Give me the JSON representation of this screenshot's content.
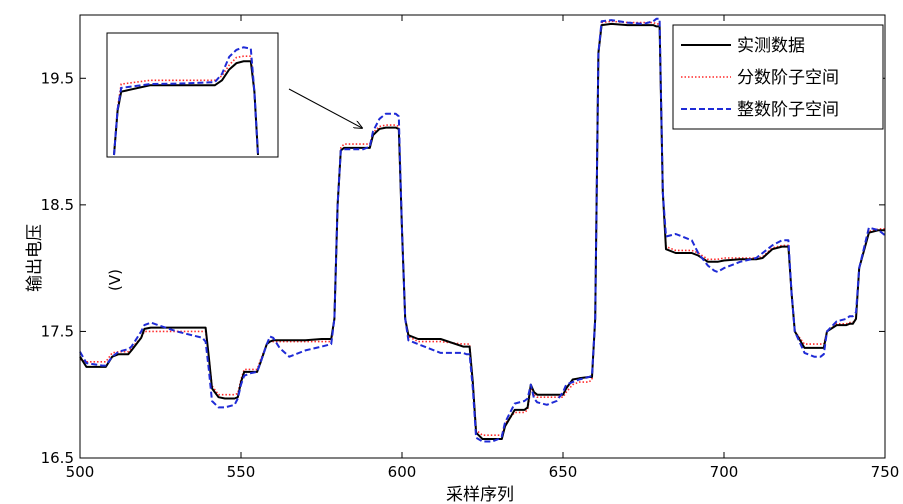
{
  "chart_data": {
    "type": "line",
    "title": "",
    "xlabel": "采样序列",
    "ylabel": "输出电压",
    "ylabel_unit": "(V)",
    "xlim": [
      500,
      750
    ],
    "ylim": [
      16.5,
      20.0
    ],
    "xticks": [
      500,
      550,
      600,
      650,
      700,
      750
    ],
    "yticks": [
      16.5,
      17.5,
      18.5,
      19.5
    ],
    "grid": false,
    "legend_position": "top-right",
    "series": [
      {
        "name": "实测数据",
        "color": "#000000",
        "dash": "solid",
        "x": [
          500,
          502,
          507,
          508,
          510,
          512,
          515,
          516,
          519,
          520,
          522,
          530,
          538,
          539,
          540,
          541,
          543,
          545,
          548,
          549,
          550,
          551,
          553,
          555,
          556,
          558,
          559,
          560,
          562,
          565,
          570,
          575,
          578,
          579,
          580,
          581,
          582,
          585,
          588,
          590,
          591,
          593,
          595,
          598,
          599,
          600,
          601,
          602,
          605,
          610,
          612,
          619,
          620,
          621,
          622,
          623,
          625,
          628,
          630,
          631,
          632,
          635,
          638,
          639,
          640,
          641,
          642,
          645,
          648,
          650,
          651,
          653,
          655,
          658,
          659,
          660,
          661,
          662,
          665,
          670,
          675,
          678,
          679,
          680,
          681,
          682,
          685,
          690,
          692,
          695,
          697,
          698,
          700,
          705,
          710,
          712,
          715,
          718,
          719,
          720,
          721,
          722,
          725,
          728,
          730,
          731,
          732,
          735,
          738,
          739,
          740,
          741,
          742,
          745,
          748,
          750
        ],
        "y": [
          17.3,
          17.22,
          17.22,
          17.22,
          17.3,
          17.32,
          17.32,
          17.35,
          17.45,
          17.52,
          17.53,
          17.53,
          17.53,
          17.53,
          17.3,
          17.05,
          16.98,
          16.97,
          16.97,
          16.98,
          17.1,
          17.18,
          17.18,
          17.18,
          17.25,
          17.4,
          17.42,
          17.43,
          17.43,
          17.43,
          17.43,
          17.44,
          17.44,
          17.6,
          18.5,
          18.93,
          18.95,
          18.95,
          18.95,
          18.95,
          19.05,
          19.1,
          19.11,
          19.11,
          19.1,
          18.3,
          17.6,
          17.47,
          17.44,
          17.44,
          17.44,
          17.38,
          17.38,
          17.38,
          17.1,
          16.7,
          16.65,
          16.65,
          16.65,
          16.65,
          16.75,
          16.88,
          16.88,
          16.9,
          17.08,
          17.02,
          17.0,
          17.0,
          17.0,
          17.0,
          17.05,
          17.12,
          17.13,
          17.14,
          17.14,
          17.6,
          19.7,
          19.92,
          19.93,
          19.92,
          19.92,
          19.92,
          19.91,
          19.91,
          18.6,
          18.15,
          18.12,
          18.12,
          18.1,
          18.05,
          18.05,
          18.05,
          18.06,
          18.07,
          18.07,
          18.08,
          18.15,
          18.17,
          18.17,
          18.17,
          17.8,
          17.5,
          17.37,
          17.37,
          17.37,
          17.37,
          17.5,
          17.55,
          17.55,
          17.56,
          17.56,
          17.6,
          18.0,
          18.28,
          18.3,
          18.3
        ]
      },
      {
        "name": "分数阶子空间",
        "color": "#ff2a2a",
        "dash": "dotted",
        "x": [
          500,
          502,
          507,
          508,
          510,
          512,
          515,
          516,
          519,
          520,
          522,
          530,
          538,
          539,
          540,
          541,
          543,
          545,
          548,
          549,
          550,
          551,
          553,
          555,
          556,
          558,
          559,
          560,
          562,
          565,
          570,
          575,
          578,
          579,
          580,
          581,
          582,
          585,
          588,
          590,
          591,
          593,
          595,
          598,
          599,
          600,
          601,
          602,
          605,
          610,
          612,
          619,
          620,
          621,
          622,
          623,
          625,
          628,
          630,
          631,
          632,
          635,
          638,
          639,
          640,
          641,
          642,
          645,
          648,
          650,
          651,
          653,
          655,
          658,
          659,
          660,
          661,
          662,
          665,
          670,
          675,
          678,
          679,
          680,
          681,
          682,
          685,
          690,
          692,
          695,
          697,
          698,
          700,
          705,
          710,
          712,
          715,
          718,
          719,
          720,
          721,
          722,
          725,
          728,
          730,
          731,
          732,
          735,
          738,
          739,
          740,
          741,
          742,
          745,
          748,
          750
        ],
        "y": [
          17.28,
          17.26,
          17.26,
          17.26,
          17.33,
          17.34,
          17.34,
          17.37,
          17.45,
          17.5,
          17.5,
          17.5,
          17.5,
          17.5,
          17.3,
          17.07,
          17.0,
          17.0,
          17.0,
          17.01,
          17.12,
          17.2,
          17.2,
          17.2,
          17.27,
          17.4,
          17.42,
          17.42,
          17.42,
          17.42,
          17.42,
          17.42,
          17.42,
          17.6,
          18.5,
          18.95,
          18.98,
          18.98,
          18.98,
          18.98,
          19.07,
          19.12,
          19.13,
          19.13,
          19.12,
          18.3,
          17.6,
          17.46,
          17.42,
          17.42,
          17.42,
          17.4,
          17.4,
          17.4,
          17.1,
          16.72,
          16.68,
          16.68,
          16.68,
          16.68,
          16.77,
          16.86,
          16.86,
          16.88,
          17.05,
          17.0,
          16.98,
          16.98,
          16.98,
          16.98,
          17.02,
          17.08,
          17.1,
          17.1,
          17.12,
          17.6,
          19.7,
          19.94,
          19.95,
          19.94,
          19.94,
          19.94,
          19.93,
          19.93,
          18.6,
          18.17,
          18.14,
          18.14,
          18.12,
          18.07,
          18.07,
          18.07,
          18.08,
          18.08,
          18.08,
          18.09,
          18.16,
          18.18,
          18.18,
          18.18,
          17.8,
          17.5,
          17.4,
          17.4,
          17.4,
          17.4,
          17.5,
          17.56,
          17.56,
          17.57,
          17.57,
          17.6,
          18.0,
          18.29,
          18.31,
          18.31
        ]
      },
      {
        "name": "整数阶子空间",
        "color": "#1f2bd6",
        "dash": "dashed",
        "x": [
          500,
          502,
          507,
          508,
          510,
          512,
          515,
          516,
          519,
          520,
          522,
          530,
          538,
          539,
          540,
          541,
          543,
          545,
          548,
          549,
          550,
          551,
          553,
          555,
          556,
          558,
          559,
          560,
          562,
          565,
          570,
          575,
          578,
          579,
          580,
          581,
          582,
          585,
          588,
          590,
          591,
          593,
          595,
          598,
          599,
          600,
          601,
          602,
          605,
          610,
          612,
          619,
          620,
          621,
          622,
          623,
          625,
          628,
          630,
          631,
          632,
          635,
          638,
          639,
          640,
          641,
          642,
          645,
          648,
          650,
          651,
          653,
          655,
          658,
          659,
          660,
          661,
          662,
          665,
          670,
          675,
          678,
          679,
          680,
          681,
          682,
          685,
          690,
          692,
          695,
          697,
          698,
          700,
          705,
          710,
          712,
          715,
          718,
          719,
          720,
          721,
          722,
          725,
          728,
          730,
          731,
          732,
          735,
          738,
          739,
          740,
          741,
          742,
          745,
          748,
          750
        ],
        "y": [
          17.34,
          17.25,
          17.23,
          17.23,
          17.3,
          17.34,
          17.36,
          17.38,
          17.5,
          17.55,
          17.57,
          17.5,
          17.45,
          17.42,
          17.2,
          16.95,
          16.9,
          16.9,
          16.92,
          16.97,
          17.08,
          17.15,
          17.17,
          17.18,
          17.25,
          17.4,
          17.46,
          17.45,
          17.37,
          17.3,
          17.35,
          17.38,
          17.4,
          17.6,
          18.5,
          18.93,
          18.94,
          18.94,
          18.94,
          18.96,
          19.08,
          19.18,
          19.22,
          19.22,
          19.2,
          18.3,
          17.6,
          17.43,
          17.4,
          17.35,
          17.33,
          17.33,
          17.32,
          17.32,
          17.05,
          16.66,
          16.63,
          16.63,
          16.65,
          16.67,
          16.78,
          16.93,
          16.95,
          16.97,
          17.08,
          16.97,
          16.94,
          16.92,
          16.95,
          17.02,
          17.08,
          17.1,
          17.12,
          17.14,
          17.15,
          17.6,
          19.7,
          19.95,
          19.96,
          19.94,
          19.93,
          19.95,
          19.97,
          19.97,
          18.6,
          18.25,
          18.27,
          18.22,
          18.12,
          18.02,
          17.98,
          17.97,
          18.0,
          18.05,
          18.08,
          18.12,
          18.18,
          18.22,
          18.22,
          18.22,
          17.8,
          17.5,
          17.33,
          17.3,
          17.3,
          17.32,
          17.5,
          17.58,
          17.6,
          17.62,
          17.62,
          17.65,
          18.0,
          18.32,
          18.3,
          18.26
        ]
      }
    ],
    "inset": {
      "note_target": "zoom of samples ~580-599",
      "series": [
        {
          "name": "实测数据",
          "x": [
            0,
            0.5,
            1,
            5,
            10,
            14,
            15,
            16,
            17,
            18,
            19,
            19.5,
            20
          ],
          "y": [
            0,
            0.7,
            1.0,
            1.1,
            1.1,
            1.1,
            1.18,
            1.35,
            1.45,
            1.48,
            1.48,
            1.0,
            0
          ]
        },
        {
          "name": "分数阶子空间",
          "x": [
            0,
            0.5,
            1,
            5,
            10,
            14,
            15,
            16,
            17,
            18,
            19,
            19.5,
            20
          ],
          "y": [
            0,
            0.75,
            1.12,
            1.18,
            1.18,
            1.18,
            1.25,
            1.42,
            1.54,
            1.56,
            1.56,
            1.0,
            0
          ]
        },
        {
          "name": "整数阶子空间",
          "x": [
            0,
            0.5,
            1,
            5,
            10,
            14,
            15,
            16,
            17,
            18,
            19,
            19.5,
            20
          ],
          "y": [
            0,
            0.72,
            1.06,
            1.12,
            1.13,
            1.15,
            1.28,
            1.55,
            1.66,
            1.7,
            1.68,
            1.0,
            0
          ]
        }
      ]
    }
  }
}
